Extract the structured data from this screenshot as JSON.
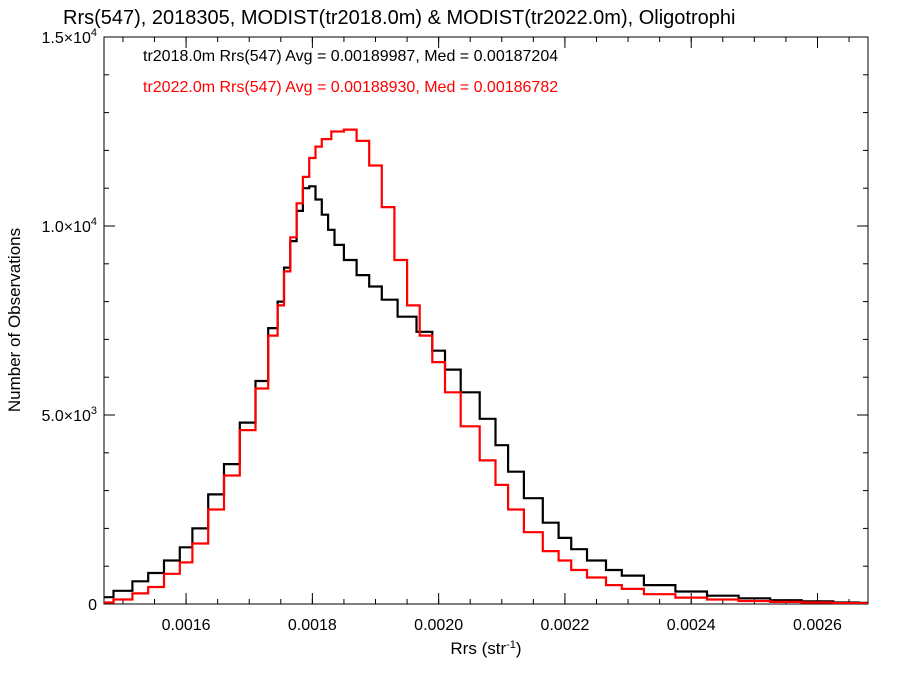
{
  "chart_data": {
    "type": "line",
    "title": "Rrs(547), 2018305, MODIST(tr2018.0m) & MODIST(tr2022.0m), Oligotrophi",
    "xlabel": "Rrs (str",
    "xlabel_sup": "-1",
    "xlabel_close": ")",
    "ylabel": "Number of Observations",
    "xlim": [
      0.00147,
      0.00268
    ],
    "ylim": [
      0,
      15000
    ],
    "x_ticks": [
      {
        "value": 0.0016,
        "label": "0.0016"
      },
      {
        "value": 0.0018,
        "label": "0.0018"
      },
      {
        "value": 0.002,
        "label": "0.0020"
      },
      {
        "value": 0.0022,
        "label": "0.0022"
      },
      {
        "value": 0.0024,
        "label": "0.0024"
      },
      {
        "value": 0.0026,
        "label": "0.0026"
      }
    ],
    "y_ticks": [
      {
        "value": 0,
        "label": "0",
        "exp": ""
      },
      {
        "value": 5000,
        "label": "5.0×10",
        "exp": "3"
      },
      {
        "value": 10000,
        "label": "1.0×10",
        "exp": "4"
      },
      {
        "value": 15000,
        "label": "1.5×10",
        "exp": "4"
      }
    ],
    "annotations": [
      {
        "text": "tr2018.0m Rrs(547) Avg = 0.00189987, Med = 0.00187204",
        "color": "#000000"
      },
      {
        "text": "tr2022.0m Rrs(547) Avg = 0.00188930, Med = 0.00186782",
        "color": "#ff0000"
      }
    ],
    "series": [
      {
        "color": "#000000",
        "x": [
          0.00147,
          0.0015,
          0.00153,
          0.00155,
          0.00158,
          0.0016,
          0.00162,
          0.00165,
          0.00167,
          0.0017,
          0.00172,
          0.00174,
          0.00175,
          0.00176,
          0.00177,
          0.00178,
          0.00179,
          0.0018,
          0.00181,
          0.00182,
          0.00183,
          0.00184,
          0.00186,
          0.00188,
          0.0019,
          0.00192,
          0.00195,
          0.00198,
          0.002,
          0.00202,
          0.00205,
          0.00208,
          0.0021,
          0.00212,
          0.00215,
          0.00218,
          0.0022,
          0.00222,
          0.00225,
          0.00228,
          0.0023,
          0.00235,
          0.0024,
          0.00245,
          0.0025,
          0.00255,
          0.0026,
          0.00265,
          0.00268
        ],
        "y": [
          180,
          350,
          600,
          820,
          1150,
          1500,
          2000,
          2900,
          3700,
          4800,
          5900,
          7300,
          8000,
          8900,
          9600,
          10400,
          11000,
          11050,
          10700,
          10300,
          9900,
          9500,
          9100,
          8700,
          8400,
          8050,
          7600,
          7200,
          6700,
          6200,
          5600,
          4900,
          4200,
          3500,
          2800,
          2150,
          1750,
          1450,
          1150,
          900,
          750,
          500,
          330,
          220,
          150,
          100,
          70,
          40,
          30
        ]
      },
      {
        "color": "#ff0000",
        "x": [
          0.00147,
          0.0015,
          0.00153,
          0.00155,
          0.00158,
          0.0016,
          0.00162,
          0.00165,
          0.00167,
          0.0017,
          0.00172,
          0.00174,
          0.00175,
          0.00176,
          0.00177,
          0.00178,
          0.00179,
          0.0018,
          0.00181,
          0.00182,
          0.00184,
          0.00186,
          0.00188,
          0.0019,
          0.00192,
          0.00194,
          0.00196,
          0.00198,
          0.002,
          0.00202,
          0.00205,
          0.00208,
          0.0021,
          0.00212,
          0.00215,
          0.00218,
          0.0022,
          0.00222,
          0.00225,
          0.00228,
          0.0023,
          0.00235,
          0.0024,
          0.00245,
          0.0025,
          0.00255,
          0.0026,
          0.00265,
          0.00268
        ],
        "y": [
          40,
          120,
          280,
          450,
          800,
          1100,
          1600,
          2500,
          3400,
          4600,
          5700,
          7100,
          7900,
          8800,
          9700,
          10600,
          11300,
          11800,
          12100,
          12300,
          12500,
          12550,
          12250,
          11600,
          10500,
          9100,
          7900,
          7100,
          6400,
          5600,
          4700,
          3800,
          3150,
          2500,
          1900,
          1400,
          1150,
          900,
          700,
          500,
          400,
          260,
          170,
          120,
          80,
          55,
          40,
          25,
          15
        ]
      }
    ]
  }
}
